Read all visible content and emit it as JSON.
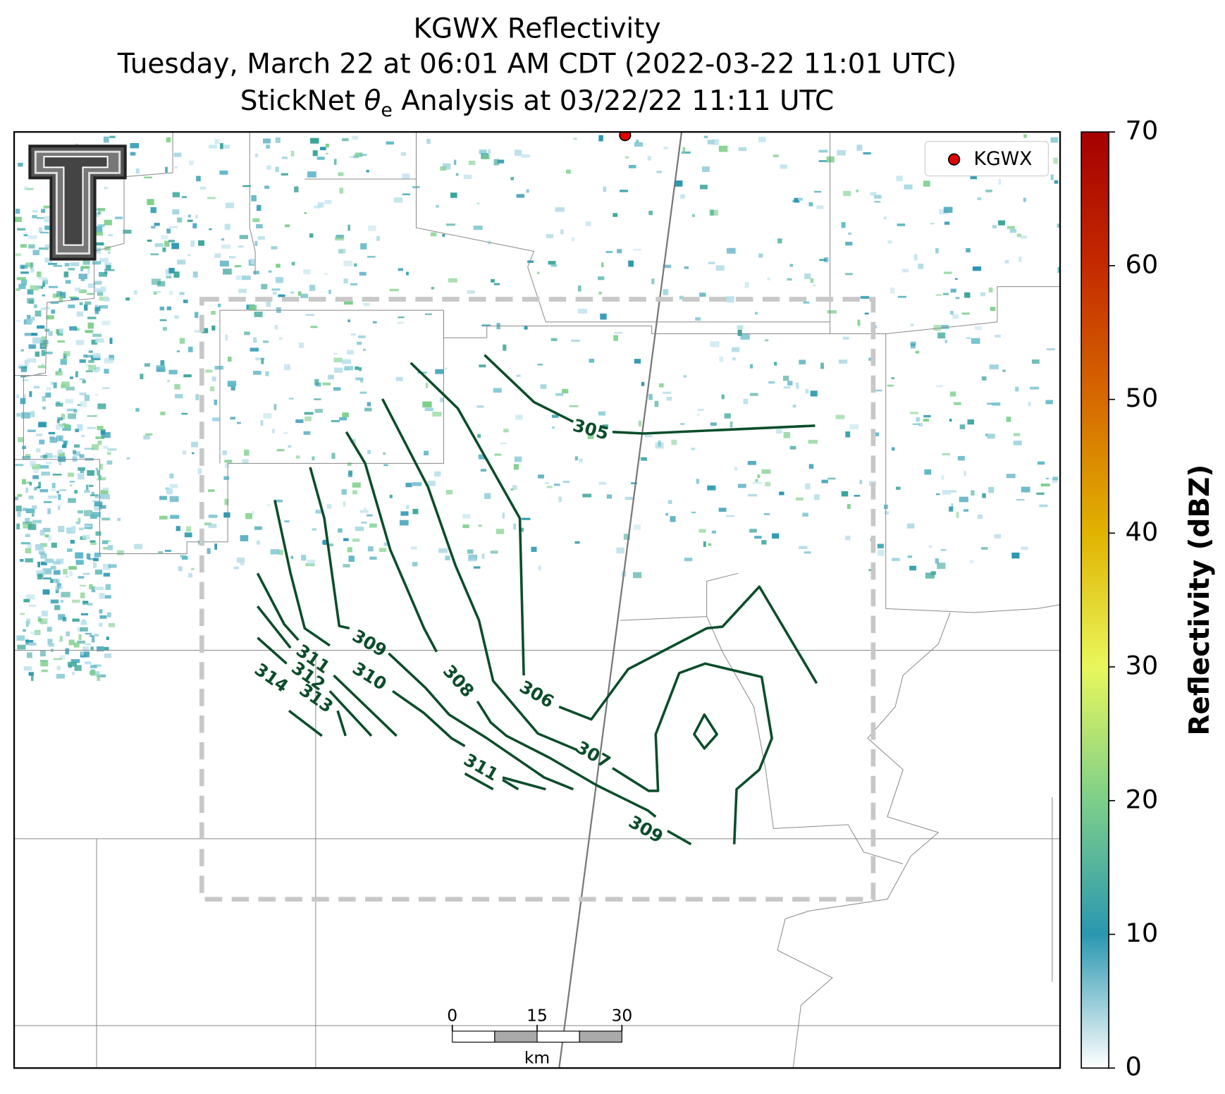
{
  "chart_data": {
    "type": "map",
    "title_lines": [
      "KGWX Reflectivity",
      "Tuesday, March 22 at 06:01 AM CDT (2022-03-22 11:01 UTC)"
    ],
    "subtitle": {
      "before": "StickNet ",
      "symbol": "θ",
      "subscript": "e",
      "after": " Analysis at 03/22/22 11:11 UTC"
    },
    "legend": {
      "label": "KGWX",
      "color": "#e00000",
      "corner": "upper right"
    },
    "contour_color": "#0b4d2a",
    "contour_labels": [
      305,
      306,
      307,
      308,
      309,
      309,
      310,
      311,
      311,
      312,
      313,
      314
    ],
    "colorbar": {
      "label": "Reflectivity (dBZ)",
      "clim": [
        0,
        70
      ],
      "ticks": [
        0,
        10,
        20,
        30,
        40,
        50,
        60,
        70
      ],
      "colors": [
        "#ffffff",
        "#2a97b0",
        "#7dcf8a",
        "#e9f75c",
        "#e0b300",
        "#d66a00",
        "#c42a00",
        "#a50000"
      ]
    },
    "scale_bar": {
      "ticks": [
        0,
        15,
        30
      ],
      "unit": "km"
    }
  }
}
